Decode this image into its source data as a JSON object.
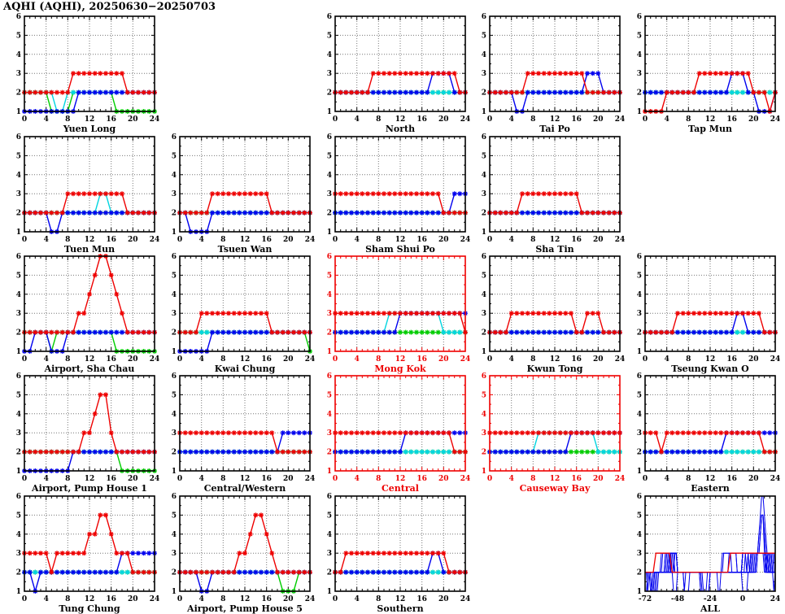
{
  "title": "AQHI (AQHI), 20250630−20250703",
  "colors": {
    "red": "#ee0000",
    "blue": "#0000ee",
    "green": "#00cc00",
    "cyan": "#00d5e0",
    "axis": "#000000",
    "roadside_axis": "#ee0000",
    "grid": "#777777",
    "background": "#ffffff"
  },
  "axes": {
    "ylim": [
      1,
      6
    ],
    "y_ticks": [
      1,
      2,
      3,
      4,
      5,
      6
    ],
    "x_ticks_default": [
      0,
      4,
      8,
      12,
      16,
      20,
      24
    ],
    "x_ticks_all_chart": [
      -72,
      -48,
      -24,
      0,
      24
    ],
    "grid": "dotted",
    "series_note": "values = hourly AQHI (1-6), one digit per hour from hour 0 to hour 24; colors blue/green/cyan/red are the four plotted day-lines"
  },
  "chart_data": [
    {
      "station": "Yuen Long",
      "type": "line",
      "col": 0,
      "row": 0,
      "roadside": false,
      "xlim": [
        0,
        24
      ],
      "series": {
        "blue": "1111111111222222222222222",
        "green": "2222211112222222211111111",
        "cyan": "2222221122222222222222222",
        "red": "2222222223333333333222222"
      }
    },
    {
      "station": "North",
      "type": "line",
      "col": 2,
      "row": 0,
      "roadside": false,
      "xlim": [
        0,
        24
      ],
      "series": {
        "blue": "2222222222222222223333222",
        "green": "2222222222222222222222222",
        "cyan": "2222222222222222222222222",
        "red": "2222222333333333333333322"
      }
    },
    {
      "station": "Tai Po",
      "type": "line",
      "col": 3,
      "row": 0,
      "roadside": false,
      "xlim": [
        0,
        24
      ],
      "series": {
        "blue": "2222211222222222223332222",
        "green": "2222222222222222222222222",
        "cyan": "2222222222222222222222222",
        "red": "2222222333333333332222222"
      }
    },
    {
      "station": "Tap Mun",
      "type": "line",
      "col": 4,
      "row": 0,
      "roadside": false,
      "xlim": [
        0,
        24
      ],
      "series": {
        "blue": "2222222222222222333221112",
        "green": "2222222222222222222222222",
        "cyan": "2222222222222222222222222",
        "red": "1111222222333333333322212"
      }
    },
    {
      "station": "Tuen Mun",
      "type": "line",
      "col": 0,
      "row": 1,
      "roadside": false,
      "xlim": [
        0,
        24
      ],
      "series": {
        "blue": "2222211222222222222222222",
        "green": "2222222222222222222222222",
        "cyan": "2222222222222233222222222",
        "red": "2222222233333333333222222"
      }
    },
    {
      "station": "Tsuen Wan",
      "type": "line",
      "col": 1,
      "row": 1,
      "roadside": false,
      "xlim": [
        0,
        24
      ],
      "series": {
        "blue": "2211112222222222222222222",
        "green": "2222222222222222222222222",
        "cyan": "2222222222222222222222222",
        "red": "2222223333333333322222222"
      }
    },
    {
      "station": "Sham Shui Po",
      "type": "line",
      "col": 2,
      "row": 1,
      "roadside": false,
      "xlim": [
        0,
        24
      ],
      "series": {
        "blue": "2222222222222222222222333",
        "green": "2222222222222222222222222",
        "cyan": "2222222222222222222222222",
        "red": "3333333333333333333322222"
      }
    },
    {
      "station": "Sha Tin",
      "type": "line",
      "col": 3,
      "row": 1,
      "roadside": false,
      "xlim": [
        0,
        24
      ],
      "series": {
        "blue": "2222222222222222222222222",
        "green": "2222222222222222222222222",
        "cyan": "2222222222222222222222222",
        "red": "2222223333333333322222222"
      }
    },
    {
      "station": "Airport, Sha Chau",
      "type": "line",
      "col": 0,
      "row": 2,
      "roadside": false,
      "xlim": [
        0,
        24
      ],
      "series": {
        "blue": "1122211122222222222222222",
        "green": "2222212222222222211111111",
        "cyan": "2222222222222222222222222",
        "red": "2222222222334566543222222"
      }
    },
    {
      "station": "Kwai Chung",
      "type": "line",
      "col": 1,
      "row": 2,
      "roadside": false,
      "xlim": [
        0,
        24
      ],
      "series": {
        "blue": "1111112222222222222222222",
        "green": "2222222222222222222222221",
        "cyan": "2222222222222222222222222",
        "red": "2222333333333333322222222"
      }
    },
    {
      "station": "Mong Kok",
      "type": "line",
      "col": 2,
      "row": 2,
      "roadside": true,
      "xlim": [
        0,
        24
      ],
      "series": {
        "blue": "2222222222223333333333333",
        "green": "2222222222222222222222222",
        "cyan": "2222222222333333333322222",
        "red": "3333333333333333333333332"
      }
    },
    {
      "station": "Kwun Tong",
      "type": "line",
      "col": 3,
      "row": 2,
      "roadside": false,
      "xlim": [
        0,
        24
      ],
      "series": {
        "blue": "2222222222222222222222222",
        "green": "2222222222222222222222222",
        "cyan": "2222222222222222222222222",
        "red": "2222333333333333223332222"
      }
    },
    {
      "station": "Tseung Kwan O",
      "type": "line",
      "col": 4,
      "row": 2,
      "roadside": false,
      "xlim": [
        0,
        24
      ],
      "series": {
        "blue": "2222222222222222233222222",
        "green": "2222222222222222222222222",
        "cyan": "2222222222222222222222222",
        "red": "2222223333333333333333222"
      }
    },
    {
      "station": "Airport, Pump House 1",
      "type": "line",
      "col": 0,
      "row": 3,
      "roadside": false,
      "xlim": [
        0,
        24
      ],
      "series": {
        "blue": "1111111112222222222222222",
        "green": "2222222222222222221111111",
        "cyan": "2222222222222222222222222",
        "red": "2222222222233455322222222"
      }
    },
    {
      "station": "Central/Western",
      "type": "line",
      "col": 1,
      "row": 3,
      "roadside": false,
      "xlim": [
        0,
        24
      ],
      "series": {
        "blue": "2222222222222222222333333",
        "green": "2222222222222222222222222",
        "cyan": "2222222222222222222222222",
        "red": "3333333333333333332222222"
      }
    },
    {
      "station": "Central",
      "type": "line",
      "col": 2,
      "row": 3,
      "roadside": true,
      "xlim": [
        0,
        24
      ],
      "series": {
        "blue": "2222222222222333333333333",
        "green": "2222222222222222222222222",
        "cyan": "2222222222222222222222222",
        "red": "3333333333333333333333222"
      }
    },
    {
      "station": "Causeway Bay",
      "type": "line",
      "col": 3,
      "row": 3,
      "roadside": true,
      "xlim": [
        0,
        24
      ],
      "series": {
        "blue": "2222222222222223333333333",
        "green": "2222222222222222222222222",
        "cyan": "2222222223333333333322222",
        "red": "3333333333333333333333333"
      }
    },
    {
      "station": "Eastern",
      "type": "line",
      "col": 4,
      "row": 3,
      "roadside": false,
      "xlim": [
        0,
        24
      ],
      "series": {
        "blue": "2222222222222223333333333",
        "green": "2222222222222222222222222",
        "cyan": "2222222222222222222222222",
        "red": "3332333333333333333333222"
      }
    },
    {
      "station": "Tung Chung",
      "type": "line",
      "col": 0,
      "row": 4,
      "roadside": false,
      "xlim": [
        0,
        24
      ],
      "series": {
        "blue": "2212222222222222223333333",
        "green": "2222222222222222222222222",
        "cyan": "2222222222222222222222222",
        "red": "3333323333334455433322222"
      }
    },
    {
      "station": "Airport, Pump House 5",
      "type": "line",
      "col": 1,
      "row": 4,
      "roadside": false,
      "xlim": [
        0,
        24
      ],
      "series": {
        "blue": "2222112222222222222222222",
        "green": "2222222222222222222111222",
        "cyan": "2222222222222222222222222",
        "red": "2222222222233455432222222"
      }
    },
    {
      "station": "Southern",
      "type": "line",
      "col": 2,
      "row": 4,
      "roadside": false,
      "xlim": [
        0,
        24
      ],
      "series": {
        "blue": "2222222222222222223322222",
        "green": "2222222222222222222222222",
        "cyan": "2222222222222222222222222",
        "red": "2233333333333333333332222"
      }
    },
    {
      "station": "ALL",
      "type": "line",
      "col": 4,
      "row": 4,
      "roadside": false,
      "xlim": [
        -72,
        24
      ],
      "x_ticks": [
        -72,
        -48,
        -24,
        0,
        24
      ],
      "overlay_all_stations": true,
      "overlay_day_order": [
        "blue",
        "green",
        "cyan",
        "red"
      ],
      "red_line": [
        [
          -72,
          2
        ],
        [
          -66,
          2
        ],
        [
          -64,
          3
        ],
        [
          -54,
          3
        ],
        [
          -52,
          2
        ],
        [
          -11,
          2
        ],
        [
          -9,
          3
        ],
        [
          24,
          3
        ]
      ]
    }
  ]
}
